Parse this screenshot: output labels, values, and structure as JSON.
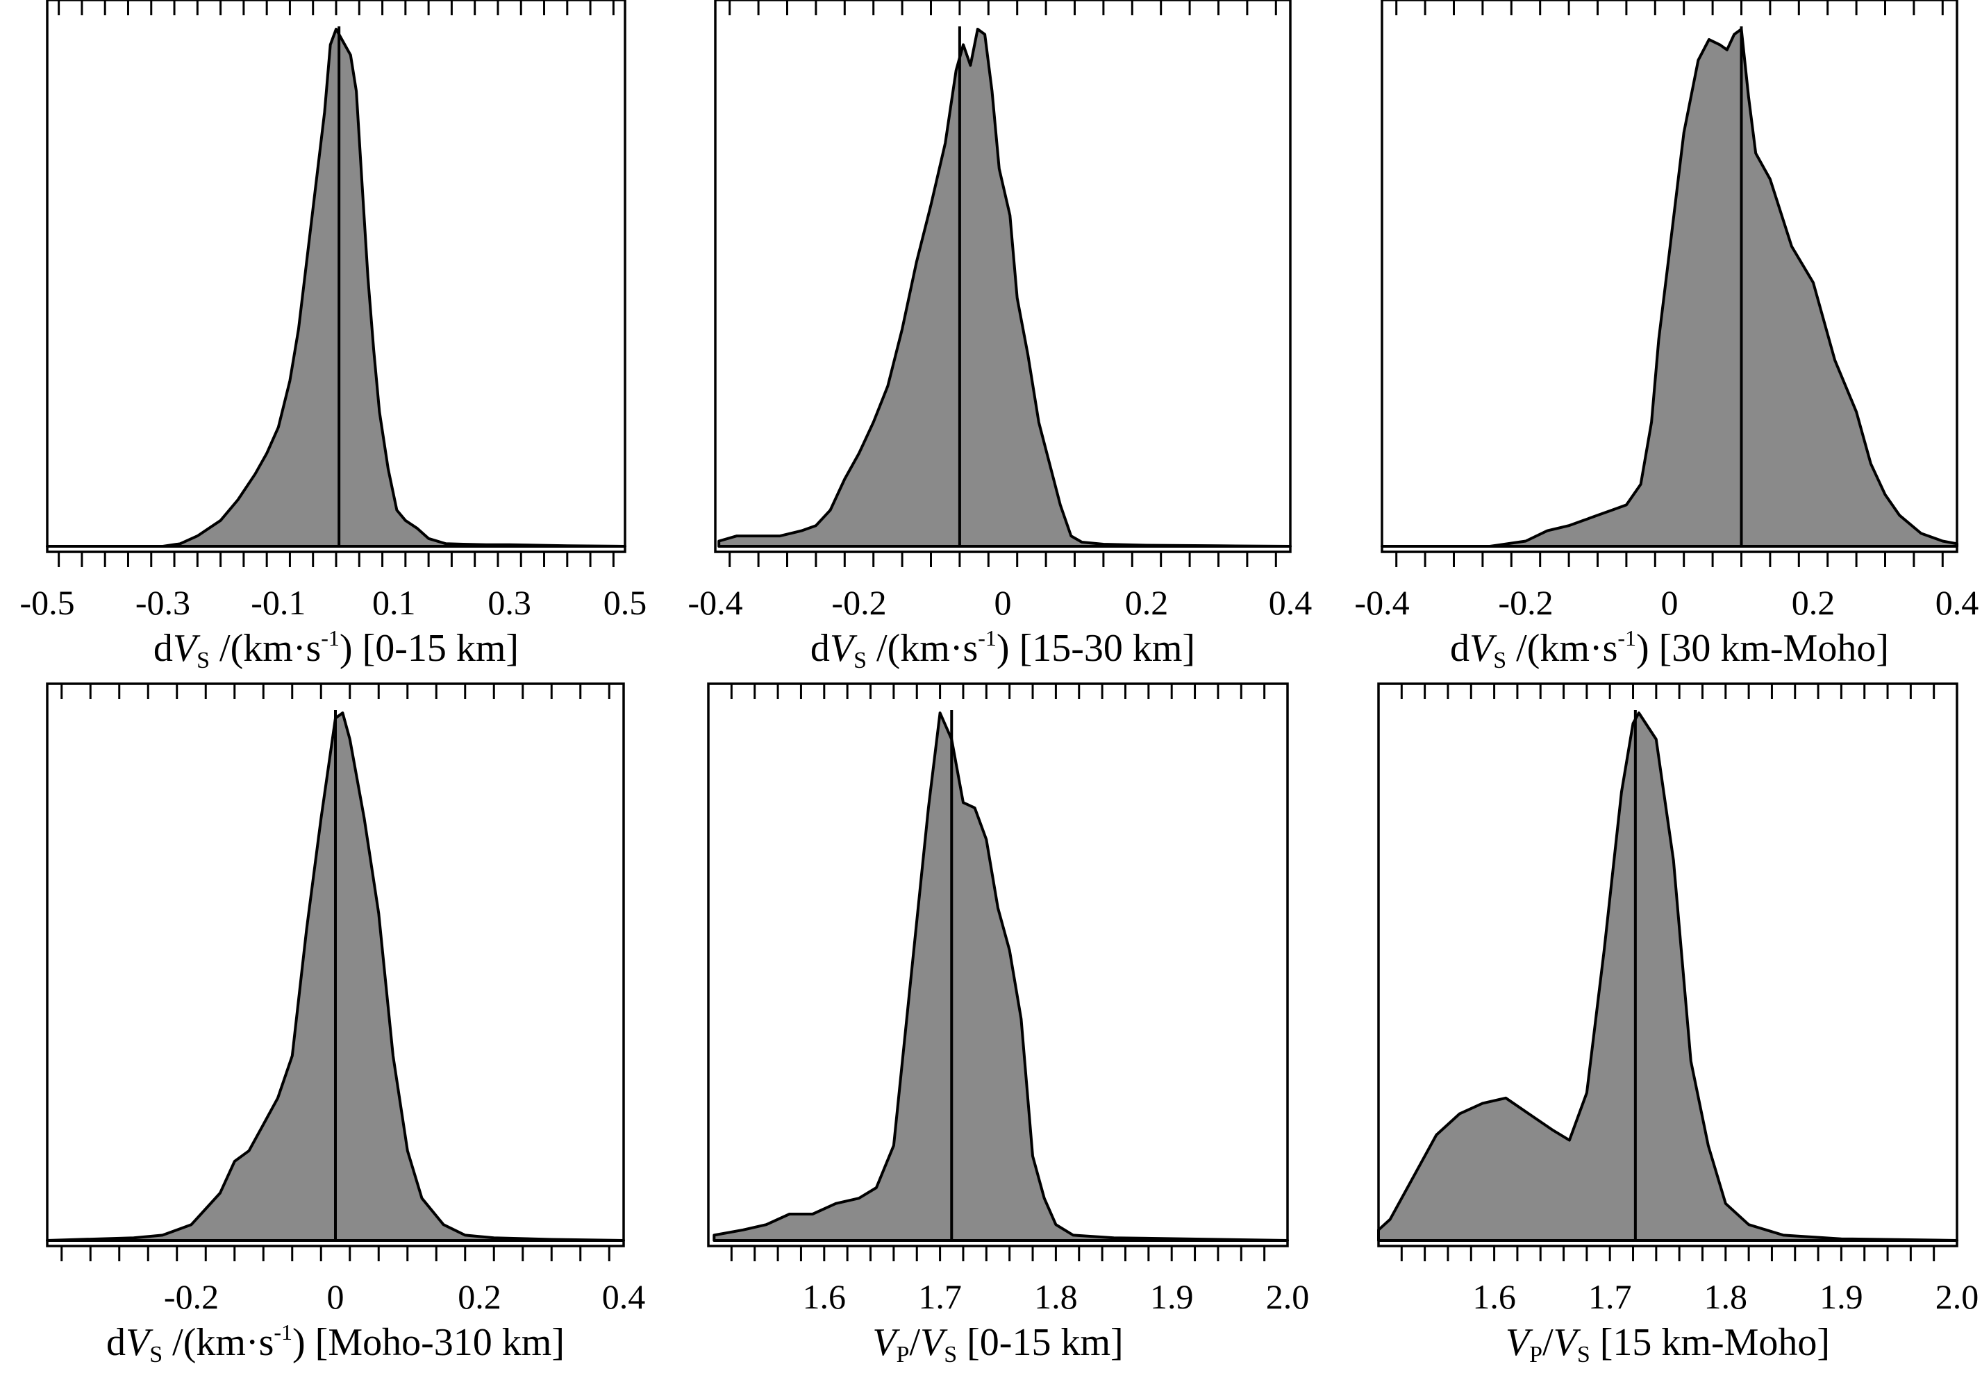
{
  "chart_data": [
    {
      "type": "area",
      "panel": "a",
      "xlim": [
        -0.5,
        0.5
      ],
      "tick_min": -0.48,
      "tick_step": 0.04,
      "tick_count": 25,
      "ticklabels": [
        {
          "v": -0.5,
          "t": "-0.5"
        },
        {
          "v": -0.3,
          "t": "-0.3"
        },
        {
          "v": -0.1,
          "t": "-0.1"
        },
        {
          "v": 0.1,
          "t": "0.1"
        },
        {
          "v": 0.3,
          "t": "0.3"
        },
        {
          "v": 0.5,
          "t": "0.5"
        }
      ],
      "xlabel": {
        "prefix": "d",
        "var1": "V",
        "sub1": "S",
        "mid": " /(km·s",
        "sup": "-1",
        "suffix": ") [0-15 km]"
      },
      "median": 0.005,
      "x": [
        -0.5,
        -0.3,
        -0.27,
        -0.24,
        -0.2,
        -0.17,
        -0.14,
        -0.12,
        -0.1,
        -0.08,
        -0.065,
        -0.05,
        -0.035,
        -0.02,
        -0.01,
        0.0,
        0.01,
        0.025,
        0.035,
        0.045,
        0.055,
        0.065,
        0.075,
        0.09,
        0.105,
        0.12,
        0.14,
        0.16,
        0.19,
        0.22,
        0.26,
        0.3,
        0.35,
        0.4,
        0.5
      ],
      "y": [
        0,
        0,
        0.005,
        0.02,
        0.05,
        0.09,
        0.14,
        0.18,
        0.23,
        0.32,
        0.42,
        0.56,
        0.7,
        0.84,
        0.97,
        1.0,
        0.98,
        0.95,
        0.88,
        0.7,
        0.52,
        0.38,
        0.26,
        0.15,
        0.07,
        0.05,
        0.035,
        0.015,
        0.005,
        0.004,
        0.003,
        0.003,
        0.002,
        0.001,
        0
      ]
    },
    {
      "type": "area",
      "panel": "b",
      "xlim": [
        -0.4,
        0.4
      ],
      "tick_min": -0.38,
      "tick_step": 0.04,
      "tick_count": 20,
      "ticklabels": [
        {
          "v": -0.4,
          "t": "-0.4"
        },
        {
          "v": -0.2,
          "t": "-0.2"
        },
        {
          "v": 0.0,
          "t": "0"
        },
        {
          "v": 0.2,
          "t": "0.2"
        },
        {
          "v": 0.4,
          "t": "0.4"
        }
      ],
      "xlabel": {
        "prefix": "d",
        "var1": "V",
        "sub1": "S",
        "mid": " /(km·s",
        "sup": "-1",
        "suffix": ") [15-30 km]"
      },
      "median": -0.06,
      "x": [
        -0.395,
        -0.37,
        -0.34,
        -0.31,
        -0.28,
        -0.26,
        -0.24,
        -0.22,
        -0.2,
        -0.18,
        -0.16,
        -0.14,
        -0.12,
        -0.1,
        -0.08,
        -0.065,
        -0.055,
        -0.045,
        -0.035,
        -0.025,
        -0.015,
        -0.005,
        0.01,
        0.02,
        0.035,
        0.05,
        0.065,
        0.08,
        0.095,
        0.11,
        0.14,
        0.2,
        0.3,
        0.4
      ],
      "y": [
        0.01,
        0.02,
        0.02,
        0.02,
        0.03,
        0.04,
        0.07,
        0.13,
        0.18,
        0.24,
        0.31,
        0.42,
        0.55,
        0.66,
        0.78,
        0.92,
        0.97,
        0.93,
        1.0,
        0.99,
        0.88,
        0.73,
        0.64,
        0.48,
        0.37,
        0.24,
        0.16,
        0.08,
        0.02,
        0.008,
        0.004,
        0.002,
        0.001,
        0
      ]
    },
    {
      "type": "area",
      "panel": "c",
      "xlim": [
        -0.4,
        0.4
      ],
      "tick_min": -0.38,
      "tick_step": 0.04,
      "tick_count": 20,
      "ticklabels": [
        {
          "v": -0.4,
          "t": "-0.4"
        },
        {
          "v": -0.2,
          "t": "-0.2"
        },
        {
          "v": 0.0,
          "t": "0"
        },
        {
          "v": 0.2,
          "t": "0.2"
        },
        {
          "v": 0.4,
          "t": "0.4"
        }
      ],
      "xlabel": {
        "prefix": "d",
        "var1": "V",
        "sub1": "S",
        "mid": " /(km·s",
        "sup": "-1",
        "suffix": ") [30 km-Moho]"
      },
      "median": 0.1,
      "x": [
        -0.4,
        -0.25,
        -0.2,
        -0.17,
        -0.14,
        -0.12,
        -0.1,
        -0.08,
        -0.06,
        -0.04,
        -0.025,
        -0.015,
        0.0,
        0.02,
        0.04,
        0.055,
        0.07,
        0.08,
        0.09,
        0.1,
        0.11,
        0.12,
        0.14,
        0.17,
        0.2,
        0.23,
        0.26,
        0.28,
        0.3,
        0.32,
        0.35,
        0.38,
        0.4
      ],
      "y": [
        0.0,
        0.0,
        0.01,
        0.03,
        0.04,
        0.05,
        0.06,
        0.07,
        0.08,
        0.12,
        0.24,
        0.4,
        0.57,
        0.8,
        0.94,
        0.98,
        0.97,
        0.96,
        0.99,
        1.0,
        0.87,
        0.76,
        0.71,
        0.58,
        0.51,
        0.36,
        0.26,
        0.16,
        0.1,
        0.06,
        0.025,
        0.01,
        0.005
      ]
    },
    {
      "type": "area",
      "panel": "d",
      "xlim": [
        -0.4,
        0.4
      ],
      "tick_min": -0.38,
      "tick_step": 0.04,
      "tick_count": 20,
      "ticklabels": [
        {
          "v": -0.2,
          "t": "-0.2"
        },
        {
          "v": 0.0,
          "t": "0"
        },
        {
          "v": 0.2,
          "t": "0.2"
        },
        {
          "v": 0.4,
          "t": "0.4"
        }
      ],
      "xlabel": {
        "prefix": "d",
        "var1": "V",
        "sub1": "S",
        "mid": " /(km·s",
        "sup": "-1",
        "suffix": ") [Moho-310 km]"
      },
      "median": 0.0,
      "x": [
        -0.4,
        -0.28,
        -0.24,
        -0.2,
        -0.18,
        -0.16,
        -0.14,
        -0.12,
        -0.1,
        -0.08,
        -0.06,
        -0.04,
        -0.02,
        0.0,
        0.01,
        0.02,
        0.04,
        0.06,
        0.08,
        0.1,
        0.12,
        0.15,
        0.18,
        0.22,
        0.3,
        0.4
      ],
      "y": [
        0,
        0.005,
        0.01,
        0.03,
        0.06,
        0.09,
        0.15,
        0.17,
        0.22,
        0.27,
        0.35,
        0.59,
        0.8,
        0.99,
        1.0,
        0.95,
        0.8,
        0.62,
        0.35,
        0.17,
        0.08,
        0.03,
        0.01,
        0.005,
        0.002,
        0
      ]
    },
    {
      "type": "area",
      "panel": "e",
      "xlim": [
        1.5,
        2.0
      ],
      "tick_min": 1.5,
      "tick_step": 0.02,
      "tick_count": 26,
      "ticklabels": [
        {
          "v": 1.6,
          "t": "1.6"
        },
        {
          "v": 1.7,
          "t": "1.7"
        },
        {
          "v": 1.8,
          "t": "1.8"
        },
        {
          "v": 1.9,
          "t": "1.9"
        },
        {
          "v": 2.0,
          "t": "2.0"
        }
      ],
      "xlabel": {
        "prefix": "",
        "var1": "V",
        "sub1": "P",
        "mid": "/",
        "var2": "V",
        "sub2": "S",
        "suffix": " [0-15 km]"
      },
      "median": 1.71,
      "x": [
        1.505,
        1.53,
        1.55,
        1.57,
        1.59,
        1.61,
        1.63,
        1.645,
        1.66,
        1.675,
        1.69,
        1.7,
        1.71,
        1.72,
        1.73,
        1.74,
        1.75,
        1.76,
        1.77,
        1.78,
        1.79,
        1.8,
        1.815,
        1.85,
        2.0
      ],
      "y": [
        0.01,
        0.02,
        0.03,
        0.05,
        0.05,
        0.07,
        0.08,
        0.1,
        0.18,
        0.5,
        0.82,
        1.0,
        0.95,
        0.83,
        0.82,
        0.76,
        0.63,
        0.55,
        0.42,
        0.16,
        0.08,
        0.03,
        0.01,
        0.005,
        0
      ]
    },
    {
      "type": "area",
      "panel": "f",
      "xlim": [
        1.5,
        2.0
      ],
      "tick_min": 1.5,
      "tick_step": 0.02,
      "tick_count": 26,
      "ticklabels": [
        {
          "v": 1.6,
          "t": "1.6"
        },
        {
          "v": 1.7,
          "t": "1.7"
        },
        {
          "v": 1.8,
          "t": "1.8"
        },
        {
          "v": 1.9,
          "t": "1.9"
        },
        {
          "v": 2.0,
          "t": "2.0"
        }
      ],
      "xlabel": {
        "prefix": "",
        "var1": "V",
        "sub1": "P",
        "mid": "/",
        "var2": "V",
        "sub2": "S",
        "suffix": " [15 km-Moho]"
      },
      "median": 1.722,
      "x": [
        1.5,
        1.51,
        1.53,
        1.55,
        1.57,
        1.59,
        1.61,
        1.63,
        1.65,
        1.665,
        1.68,
        1.695,
        1.71,
        1.72,
        1.725,
        1.74,
        1.755,
        1.77,
        1.785,
        1.8,
        1.82,
        1.85,
        1.9,
        2.0
      ],
      "y": [
        0.02,
        0.04,
        0.12,
        0.2,
        0.24,
        0.26,
        0.27,
        0.24,
        0.21,
        0.19,
        0.28,
        0.55,
        0.85,
        0.98,
        1.0,
        0.95,
        0.72,
        0.34,
        0.18,
        0.07,
        0.03,
        0.01,
        0.003,
        0
      ]
    }
  ]
}
